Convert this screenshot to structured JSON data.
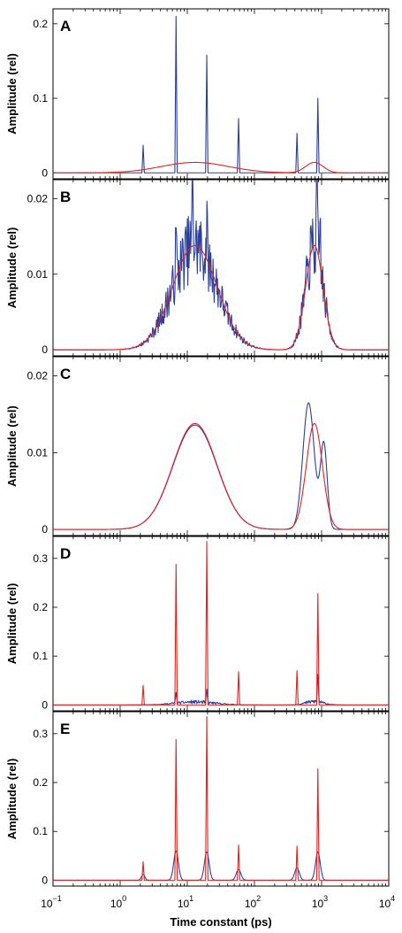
{
  "chart_data": {
    "type": "line",
    "xlabel": "Time constant (ps)",
    "x_scale": "log",
    "xlim": [
      0.1,
      10000
    ],
    "x_tick_labels": [
      {
        "base": "10",
        "exp": "−1"
      },
      {
        "base": "10",
        "exp": "0"
      },
      {
        "base": "10",
        "exp": "1"
      },
      {
        "base": "10",
        "exp": "2"
      },
      {
        "base": "10",
        "exp": "3"
      },
      {
        "base": "10",
        "exp": "4"
      }
    ],
    "colors": {
      "blue": "#2b3f9e",
      "red": "#e8211d"
    },
    "panels": [
      {
        "letter": "A",
        "ylabel": "Amplitude (rel)",
        "ylim": [
          -0.008,
          0.22
        ],
        "yticks": [
          0,
          0.1,
          0.2
        ],
        "ytick_labels": [
          "0",
          "0.1",
          "0.2"
        ],
        "series": [
          {
            "color": "blue",
            "kind": "spikes",
            "points": [
              [
                2.2,
                0.037
              ],
              [
                6.8,
                0.21
              ],
              [
                19.5,
                0.158
              ],
              [
                58,
                0.073
              ],
              [
                430,
                0.053
              ],
              [
                880,
                0.1
              ]
            ]
          },
          {
            "color": "red",
            "kind": "gaussians",
            "components": [
              [
                13,
                0.014,
                0.5
              ],
              [
                780,
                0.014,
                0.13
              ]
            ]
          }
        ]
      },
      {
        "letter": "B",
        "ylabel": "Amplitude (rel)",
        "ylim": [
          -0.0008,
          0.0225
        ],
        "yticks": [
          0,
          0.01,
          0.02
        ],
        "ytick_labels": [
          "0",
          "0.01",
          "0.02"
        ],
        "series": [
          {
            "color": "blue",
            "kind": "noisy",
            "noise": 0.35,
            "seed": 7,
            "components": [
              [
                13,
                0.0138,
                0.33
              ],
              [
                780,
                0.0138,
                0.13
              ]
            ],
            "spikes": [
              [
                6.8,
                0.006
              ],
              [
                12,
                0.009
              ],
              [
                19.5,
                0.005
              ],
              [
                850,
                0.008
              ],
              [
                950,
                0.006
              ]
            ]
          },
          {
            "color": "red",
            "kind": "gaussians",
            "components": [
              [
                13,
                0.0138,
                0.33
              ],
              [
                780,
                0.0138,
                0.13
              ]
            ]
          }
        ]
      },
      {
        "letter": "C",
        "ylabel": "Amplitude (rel)",
        "ylim": [
          -0.0008,
          0.0225
        ],
        "yticks": [
          0,
          0.01,
          0.02
        ],
        "ytick_labels": [
          "0",
          "0.01",
          "0.02"
        ],
        "series": [
          {
            "color": "blue",
            "kind": "gaussians",
            "components": [
              [
                13,
                0.0136,
                0.33
              ],
              [
                640,
                0.0165,
                0.085
              ],
              [
                1080,
                0.011,
                0.05
              ]
            ]
          },
          {
            "color": "red",
            "kind": "gaussians",
            "components": [
              [
                13,
                0.0138,
                0.33
              ],
              [
                780,
                0.0138,
                0.12
              ]
            ]
          }
        ]
      },
      {
        "letter": "D",
        "ylabel": "Amplitude (rel)",
        "ylim": [
          -0.012,
          0.345
        ],
        "yticks": [
          0,
          0.1,
          0.2,
          0.3
        ],
        "ytick_labels": [
          "0",
          "0.1",
          "0.2",
          "0.3"
        ],
        "series": [
          {
            "color": "blue",
            "kind": "noisy",
            "noise": 0.6,
            "seed": 11,
            "components": [
              [
                13,
                0.006,
                0.3
              ],
              [
                780,
                0.007,
                0.13
              ]
            ],
            "spikes": [
              [
                6.8,
                0.022
              ],
              [
                19.5,
                0.026
              ],
              [
                880,
                0.06
              ]
            ]
          },
          {
            "color": "red",
            "kind": "spikes",
            "points": [
              [
                2.2,
                0.04
              ],
              [
                6.8,
                0.288
              ],
              [
                19.5,
                0.335
              ],
              [
                58,
                0.068
              ],
              [
                430,
                0.07
              ],
              [
                880,
                0.228
              ]
            ]
          }
        ]
      },
      {
        "letter": "E",
        "ylabel": "Amplitude (rel)",
        "ylim": [
          -0.012,
          0.345
        ],
        "yticks": [
          0,
          0.1,
          0.2,
          0.3
        ],
        "ytick_labels": [
          "0",
          "0.1",
          "0.2",
          "0.3"
        ],
        "series": [
          {
            "color": "blue",
            "kind": "gaussians",
            "components": [
              [
                2.2,
                0.012,
                0.025
              ],
              [
                6.8,
                0.06,
                0.035
              ],
              [
                19.5,
                0.058,
                0.035
              ],
              [
                58,
                0.022,
                0.035
              ],
              [
                430,
                0.025,
                0.035
              ],
              [
                880,
                0.058,
                0.035
              ]
            ]
          },
          {
            "color": "red",
            "kind": "spikes",
            "points": [
              [
                2.2,
                0.038
              ],
              [
                6.8,
                0.288
              ],
              [
                19.5,
                0.335
              ],
              [
                58,
                0.072
              ],
              [
                430,
                0.07
              ],
              [
                880,
                0.228
              ]
            ]
          }
        ]
      }
    ]
  }
}
